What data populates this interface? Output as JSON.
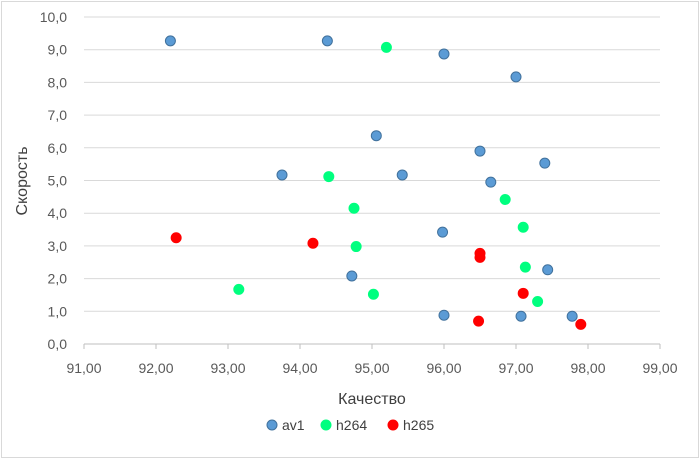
{
  "chart_data": {
    "type": "scatter",
    "title": "",
    "xlabel": "Качество",
    "ylabel": "Скорость",
    "xlim": [
      91,
      99
    ],
    "ylim": [
      0,
      10
    ],
    "x_ticks": [
      "91,00",
      "92,00",
      "93,00",
      "94,00",
      "95,00",
      "96,00",
      "97,00",
      "98,00",
      "99,00"
    ],
    "y_ticks": [
      "0,0",
      "1,0",
      "2,0",
      "3,0",
      "4,0",
      "5,0",
      "6,0",
      "7,0",
      "8,0",
      "9,0",
      "10,0"
    ],
    "grid": "horizontal",
    "legend": "bottom",
    "series": [
      {
        "name": "av1",
        "color": "#5b9bd5",
        "points": [
          {
            "x": 92.2,
            "y": 9.27
          },
          {
            "x": 94.38,
            "y": 9.27
          },
          {
            "x": 96.0,
            "y": 8.87
          },
          {
            "x": 97.0,
            "y": 8.17
          },
          {
            "x": 95.06,
            "y": 6.37
          },
          {
            "x": 96.5,
            "y": 5.9
          },
          {
            "x": 97.4,
            "y": 5.53
          },
          {
            "x": 93.75,
            "y": 5.17
          },
          {
            "x": 95.42,
            "y": 5.17
          },
          {
            "x": 96.65,
            "y": 4.95
          },
          {
            "x": 95.98,
            "y": 3.42
          },
          {
            "x": 94.72,
            "y": 2.08
          },
          {
            "x": 97.44,
            "y": 2.27
          },
          {
            "x": 96.0,
            "y": 0.88
          },
          {
            "x": 97.07,
            "y": 0.85
          },
          {
            "x": 97.78,
            "y": 0.85
          }
        ]
      },
      {
        "name": "h264",
        "color": "#00ff7f",
        "points": [
          {
            "x": 95.2,
            "y": 9.07
          },
          {
            "x": 94.4,
            "y": 5.12
          },
          {
            "x": 94.75,
            "y": 4.15
          },
          {
            "x": 96.85,
            "y": 4.42
          },
          {
            "x": 94.78,
            "y": 2.98
          },
          {
            "x": 97.1,
            "y": 3.57
          },
          {
            "x": 93.15,
            "y": 1.67
          },
          {
            "x": 95.02,
            "y": 1.52
          },
          {
            "x": 97.13,
            "y": 2.35
          },
          {
            "x": 97.3,
            "y": 1.3
          }
        ]
      },
      {
        "name": "h265",
        "color": "#ff0000",
        "points": [
          {
            "x": 92.28,
            "y": 3.25
          },
          {
            "x": 94.18,
            "y": 3.08
          },
          {
            "x": 96.5,
            "y": 2.77
          },
          {
            "x": 96.5,
            "y": 2.65
          },
          {
            "x": 97.1,
            "y": 1.55
          },
          {
            "x": 96.48,
            "y": 0.7
          },
          {
            "x": 97.9,
            "y": 0.6
          }
        ]
      }
    ]
  }
}
